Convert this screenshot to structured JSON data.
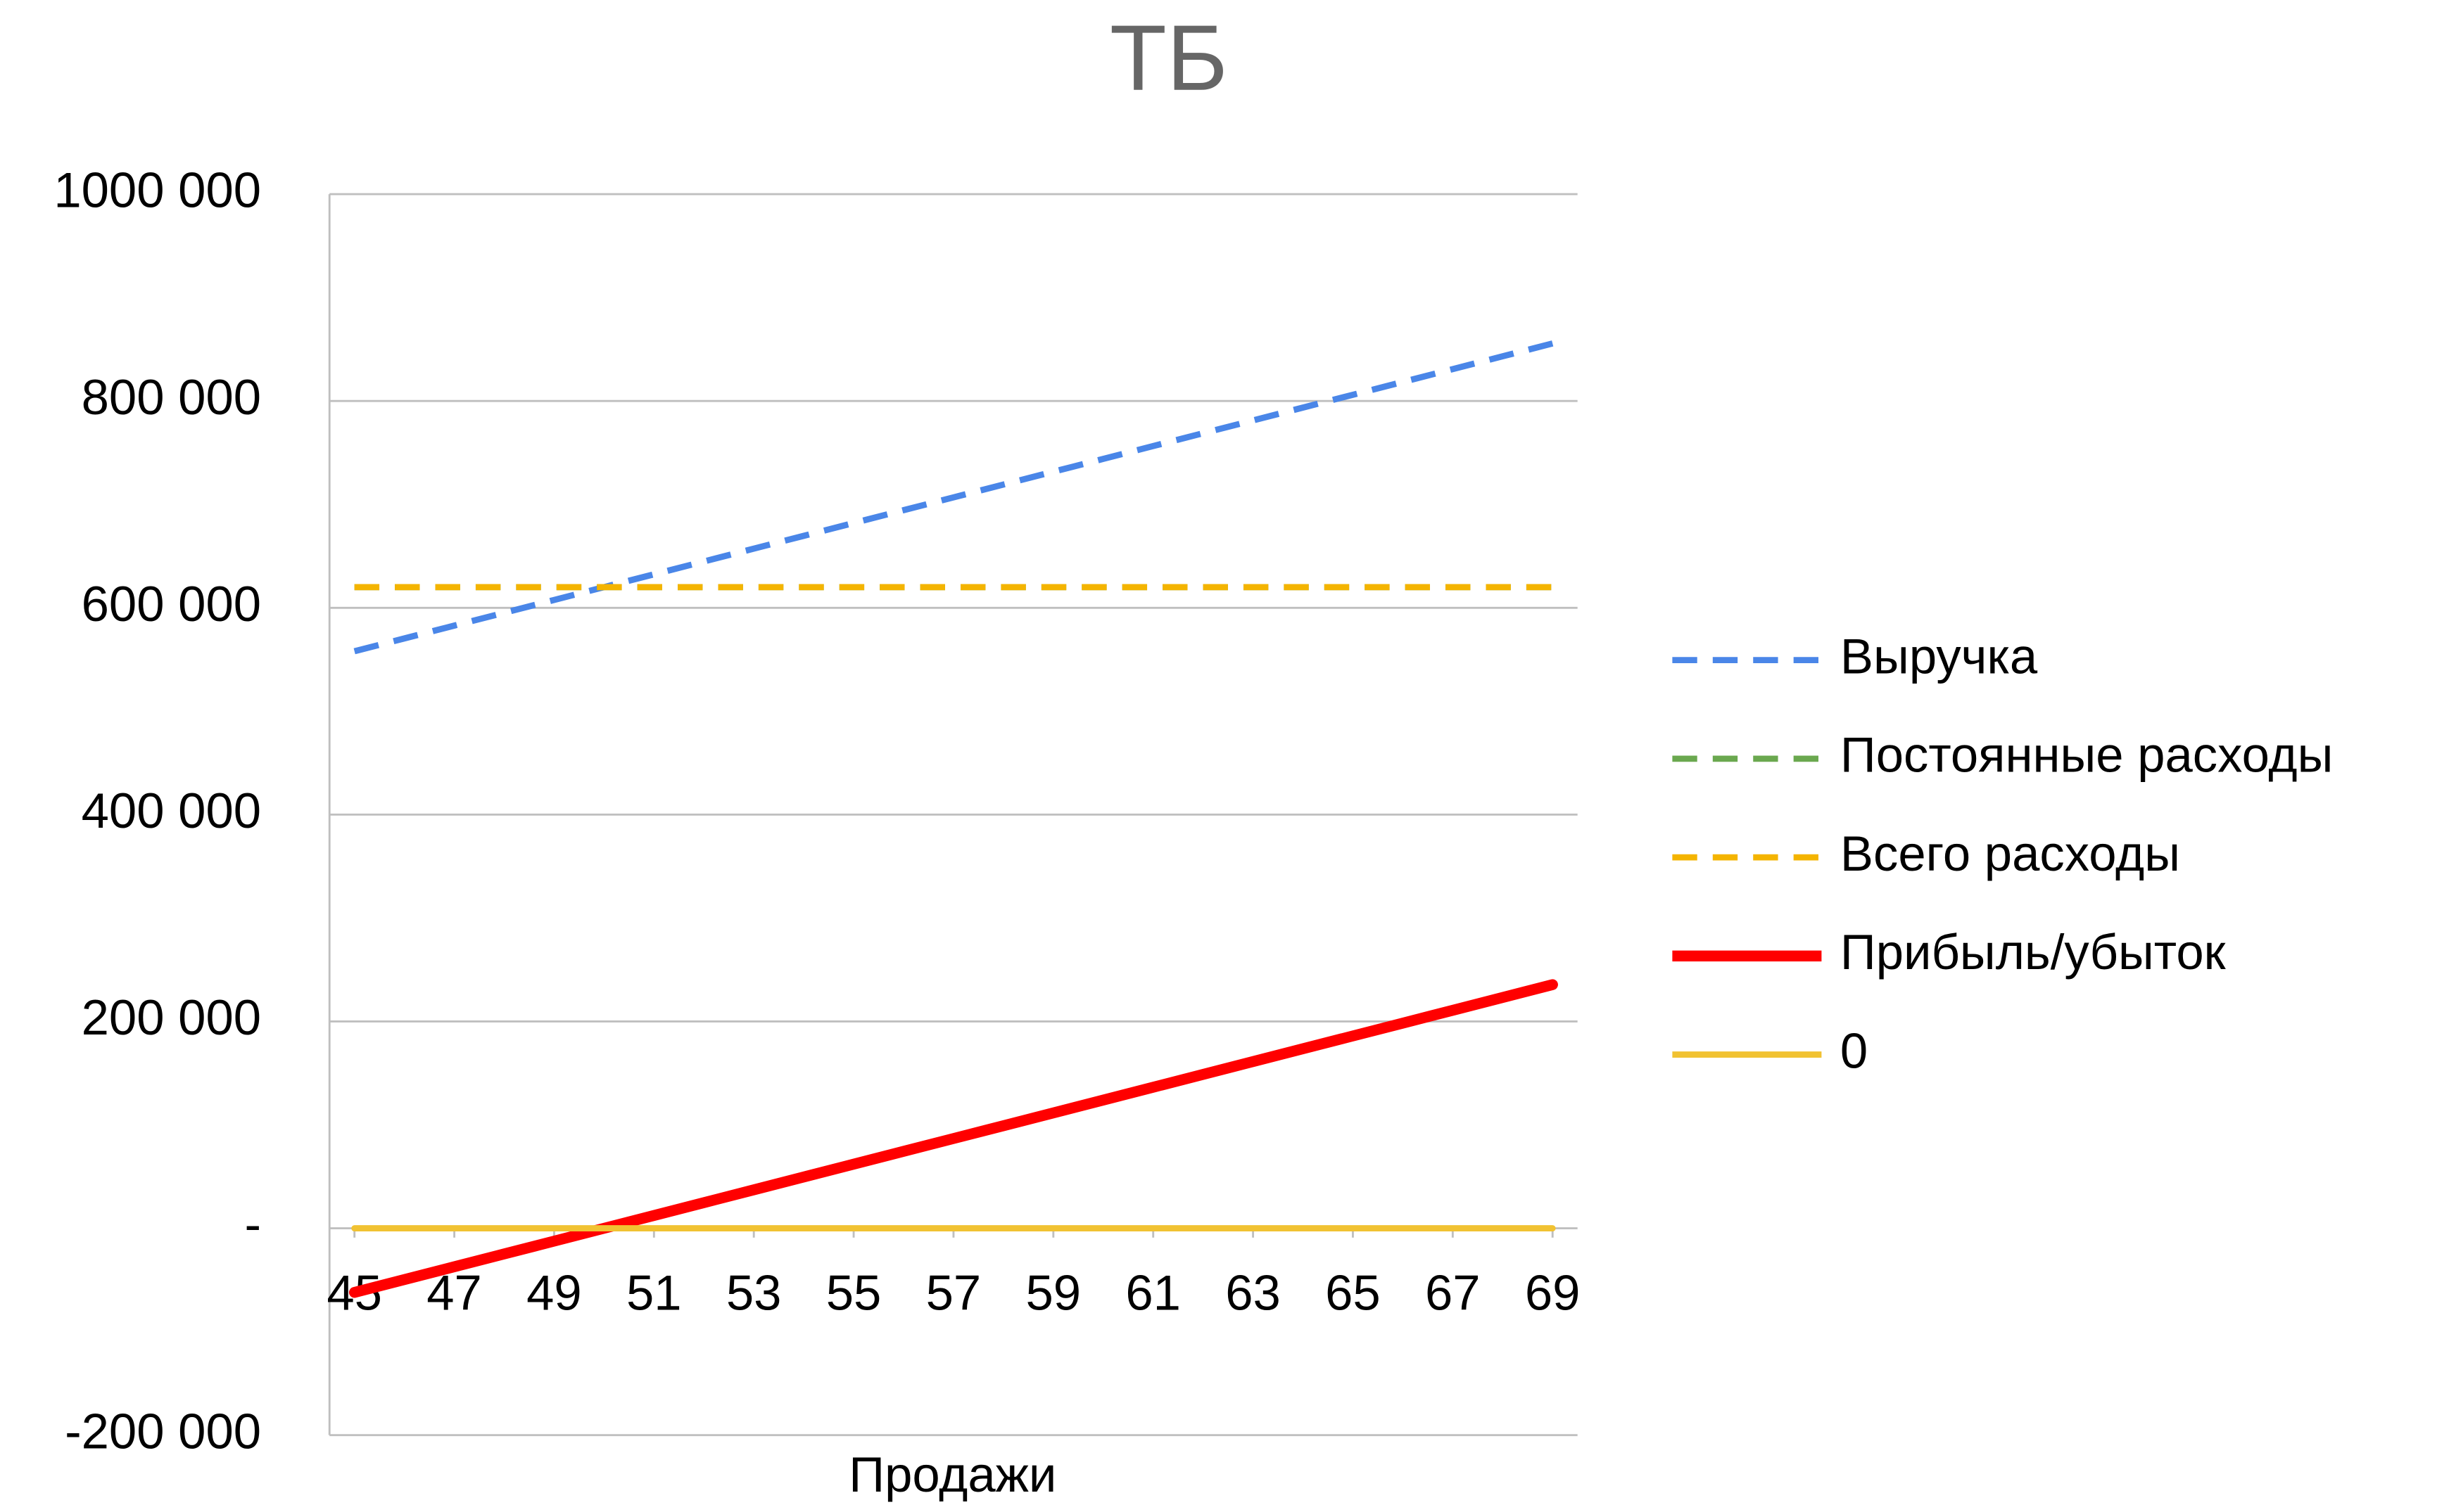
{
  "chart_data": {
    "type": "line",
    "title": "ТБ",
    "x_label": "Продажи",
    "x": [
      45,
      46,
      47,
      48,
      49,
      50,
      51,
      52,
      53,
      54,
      55,
      56,
      57,
      58,
      59,
      60,
      61,
      62,
      63,
      64,
      65,
      66,
      67,
      68,
      69
    ],
    "xlim": [
      44.5,
      69.5
    ],
    "xticks": [
      45,
      47,
      49,
      51,
      53,
      55,
      57,
      59,
      61,
      63,
      65,
      67,
      69
    ],
    "ylim": [
      -200000,
      1000000
    ],
    "yticks": [
      {
        "value": -200000,
        "label": "-200 000"
      },
      {
        "value": 0,
        "label": "-"
      },
      {
        "value": 200000,
        "label": "200 000"
      },
      {
        "value": 400000,
        "label": "400 000"
      },
      {
        "value": 600000,
        "label": "600 000"
      },
      {
        "value": 800000,
        "label": "800 000"
      },
      {
        "value": 1000000,
        "label": "1000 000"
      }
    ],
    "grid": true,
    "legend": "right",
    "series": [
      {
        "name": "Выручка",
        "color": "#4a86e8",
        "dash": true,
        "values": [
          558000,
          570400,
          582800,
          595200,
          607600,
          620000,
          632400,
          644800,
          657200,
          669600,
          682000,
          694400,
          706800,
          719200,
          731600,
          744000,
          756400,
          768800,
          781200,
          793600,
          806000,
          818400,
          830800,
          843200,
          855600
        ]
      },
      {
        "name": "Постоянные расходы",
        "color": "#6aa84f",
        "dash": true,
        "values": [
          620000,
          620000,
          620000,
          620000,
          620000,
          620000,
          620000,
          620000,
          620000,
          620000,
          620000,
          620000,
          620000,
          620000,
          620000,
          620000,
          620000,
          620000,
          620000,
          620000,
          620000,
          620000,
          620000,
          620000,
          620000
        ]
      },
      {
        "name": "Всего расходы",
        "color": "#f4b400",
        "dash": true,
        "values": [
          620000,
          620000,
          620000,
          620000,
          620000,
          620000,
          620000,
          620000,
          620000,
          620000,
          620000,
          620000,
          620000,
          620000,
          620000,
          620000,
          620000,
          620000,
          620000,
          620000,
          620000,
          620000,
          620000,
          620000,
          620000
        ]
      },
      {
        "name": "Прибыль/убыток",
        "color": "#ff0000",
        "dash": false,
        "values": [
          -62000,
          -49600,
          -37200,
          -24800,
          -12400,
          0,
          12400,
          24800,
          37200,
          49600,
          62000,
          74400,
          86800,
          99200,
          111600,
          124000,
          136400,
          148800,
          161200,
          173600,
          186000,
          198400,
          210800,
          223200,
          235600
        ]
      },
      {
        "name": "0",
        "color": "#f1c232",
        "dash": false,
        "values": [
          0,
          0,
          0,
          0,
          0,
          0,
          0,
          0,
          0,
          0,
          0,
          0,
          0,
          0,
          0,
          0,
          0,
          0,
          0,
          0,
          0,
          0,
          0,
          0,
          0
        ]
      }
    ]
  }
}
